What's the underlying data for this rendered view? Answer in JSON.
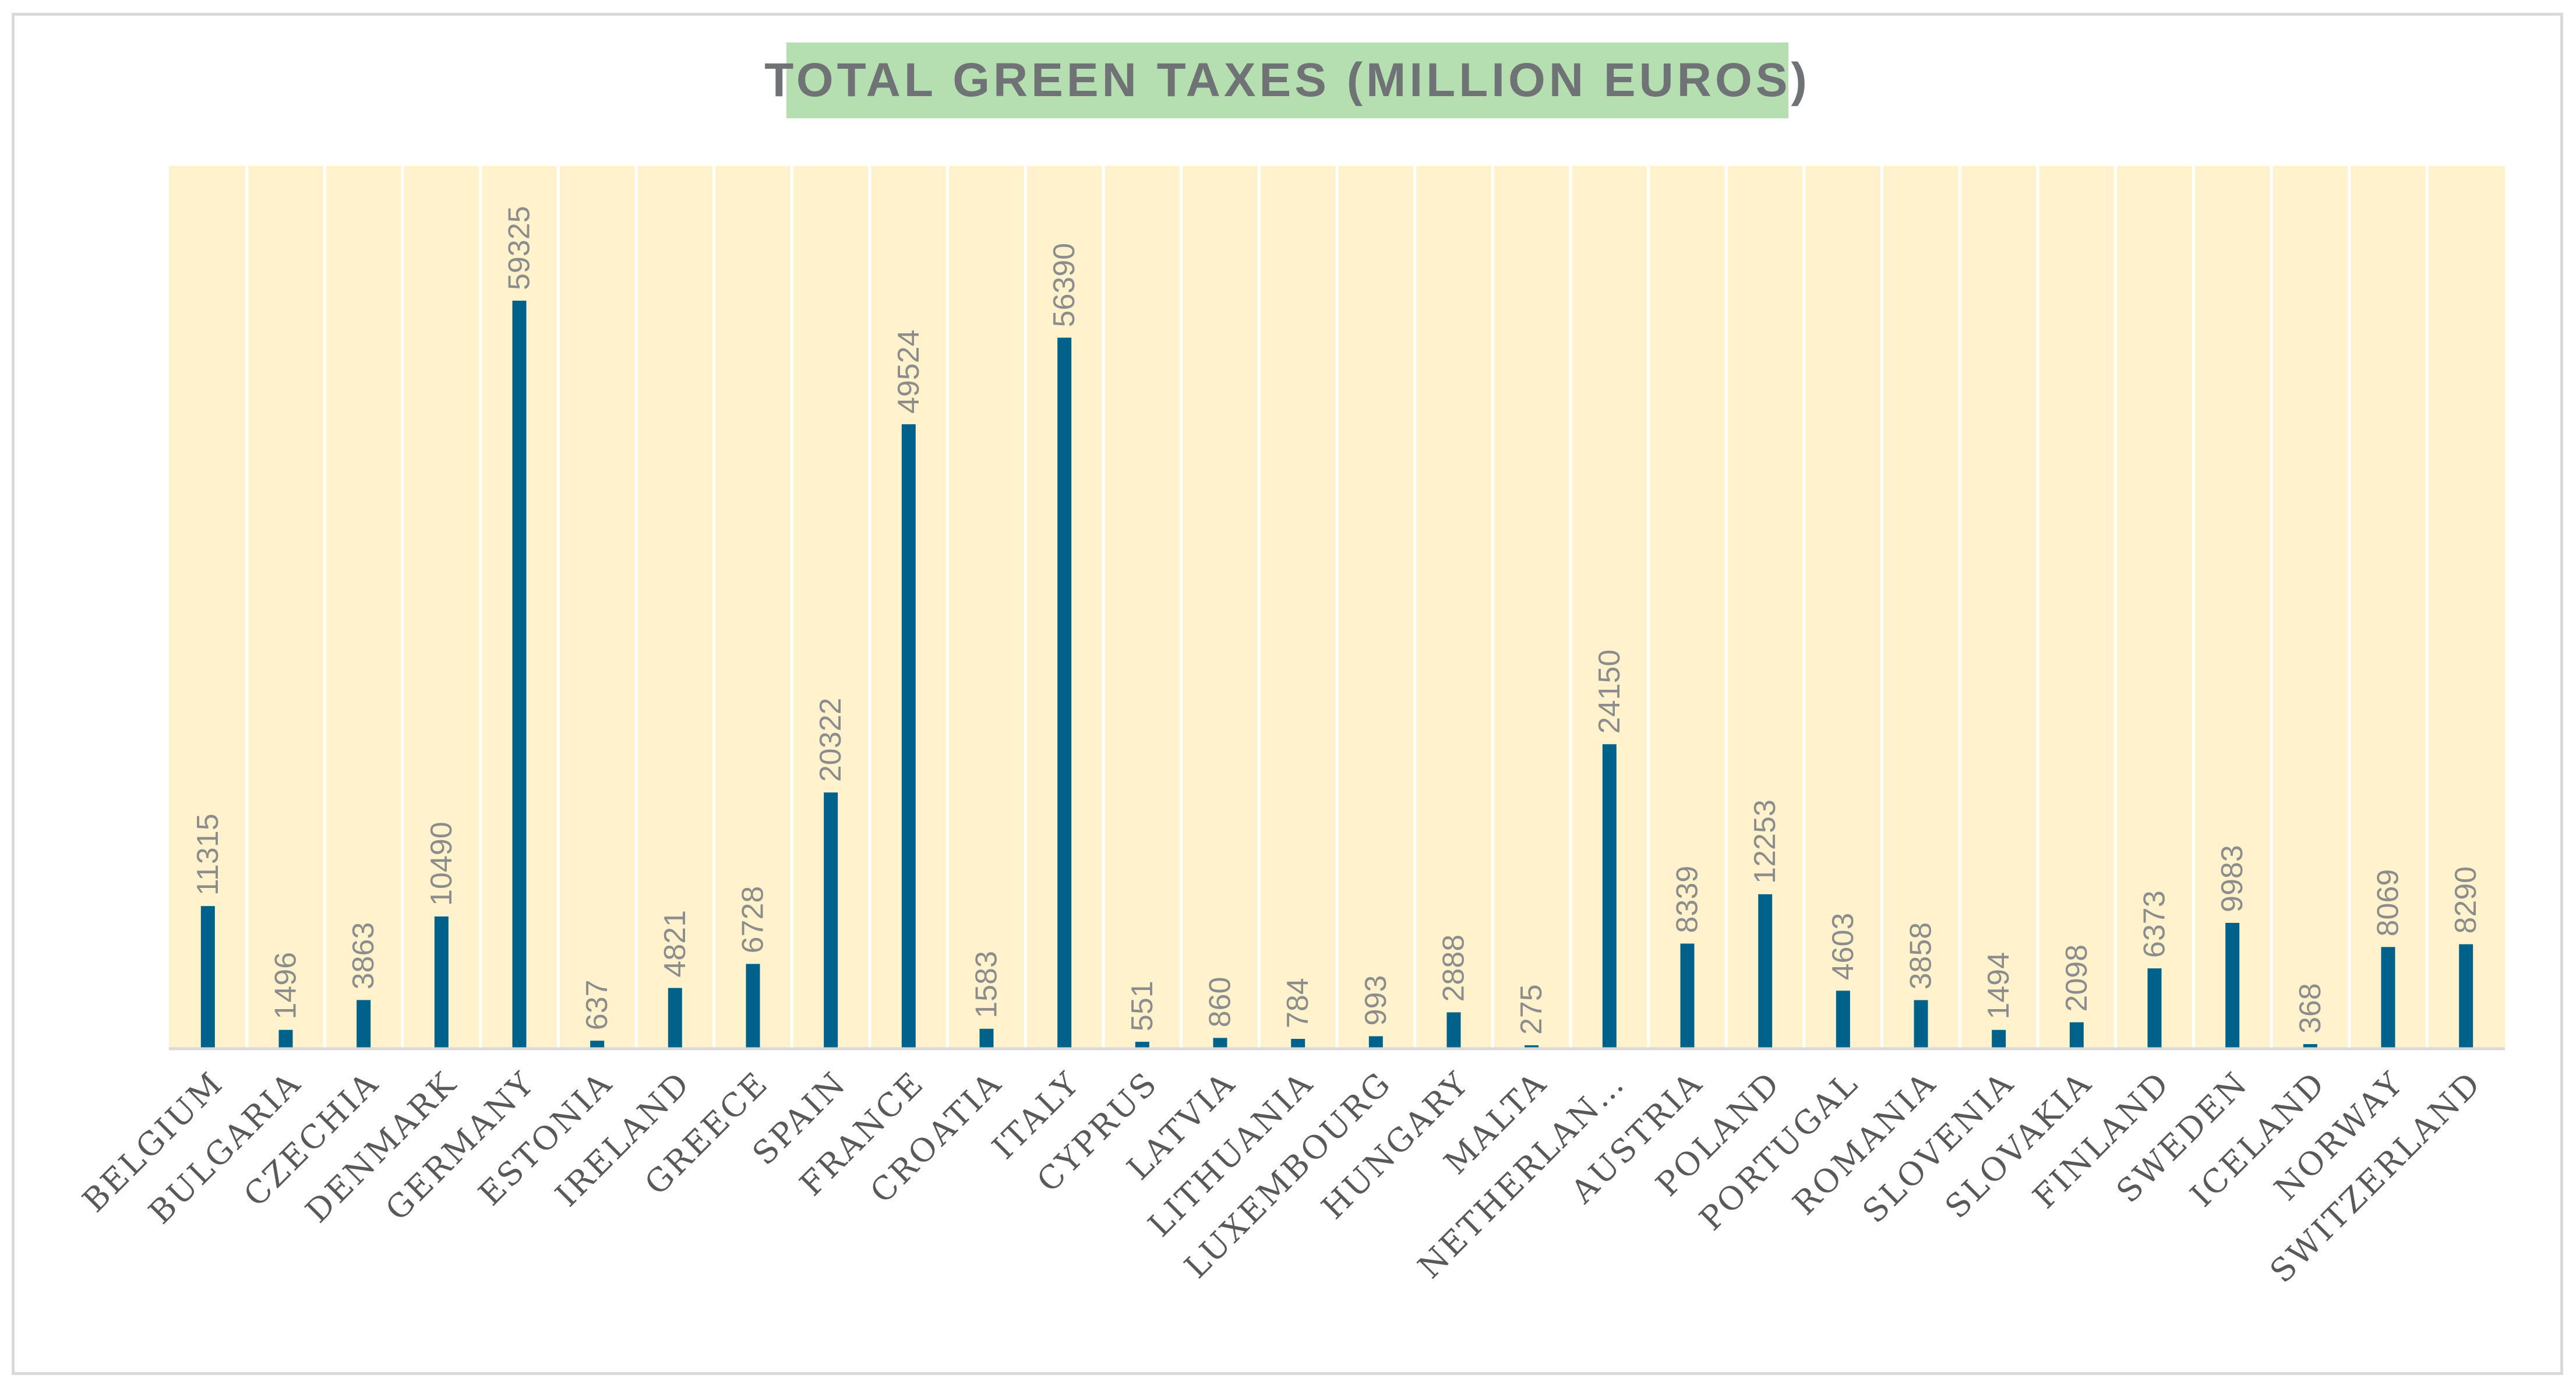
{
  "chart_data": {
    "type": "bar",
    "title": "TOTAL GREEN TAXES (MILLION EUROS)",
    "xlabel": "",
    "ylabel": "",
    "ylim": [
      0,
      70000
    ],
    "grid": false,
    "legend": "none",
    "categories": [
      "BELGIUM",
      "BULGARIA",
      "CZECHIA",
      "DENMARK",
      "GERMANY",
      "ESTONIA",
      "IRELAND",
      "GREECE",
      "SPAIN",
      "FRANCE",
      "CROATIA",
      "ITALY",
      "CYPRUS",
      "LATVIA",
      "LITHUANIA",
      "LUXEMBOURG",
      "HUNGARY",
      "MALTA",
      "NETHERLAN…",
      "AUSTRIA",
      "POLAND",
      "PORTUGAL",
      "ROMANIA",
      "SLOVENIA",
      "SLOVAKIA",
      "FINLAND",
      "SWEDEN",
      "ICELAND",
      "NORWAY",
      "SWITZERLAND"
    ],
    "values": [
      11315,
      1496,
      3863,
      10490,
      59325,
      637,
      4821,
      6728,
      20322,
      49524,
      1583,
      56390,
      551,
      860,
      784,
      993,
      2888,
      275,
      24150,
      8339,
      12253,
      4603,
      3858,
      1494,
      2098,
      6373,
      9983,
      368,
      8069,
      8290
    ],
    "value_labels": [
      "11315",
      "1496",
      "3863",
      "10490",
      "59325",
      "637",
      "4821",
      "6728",
      "20322",
      "49524",
      "1583",
      "56390",
      "551",
      "860",
      "784",
      "993",
      "2888",
      "275",
      "24150",
      "8339",
      "12253",
      "4603",
      "3858",
      "1494",
      "2098",
      "6373",
      "9983",
      "368",
      "8069",
      "8290"
    ]
  },
  "colors": {
    "plot_background": "#fff2cc",
    "bar": "#00628b",
    "title_background": "#b6dfb1",
    "title_text": "#6f7376",
    "value_label": "#8c8c8c",
    "category_label": "#595959",
    "column_divider": "#ffffff",
    "axis_line": "#d9d9d9"
  }
}
